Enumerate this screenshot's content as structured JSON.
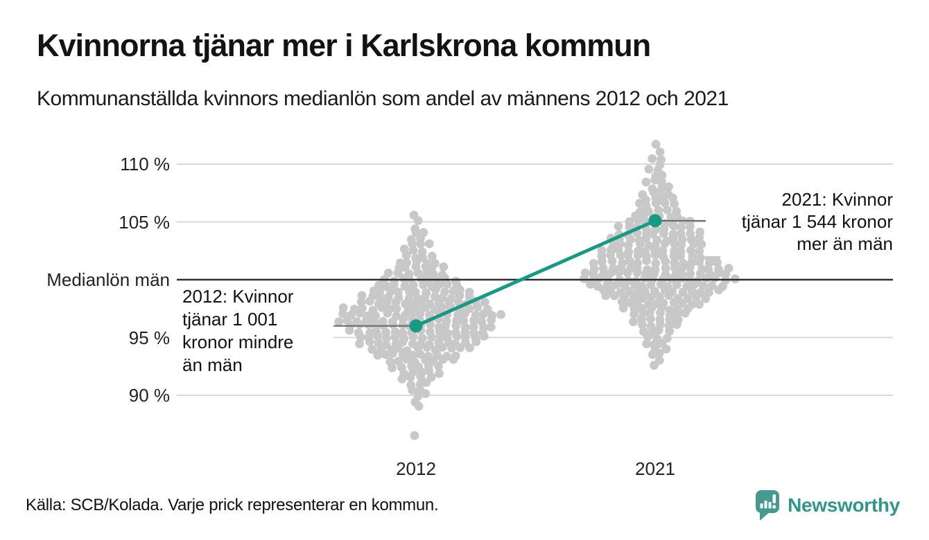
{
  "header": {
    "title": "Kvinnorna tjänar mer i Karlskrona kommun",
    "subtitle": "Kommunanställda kvinnors medianlön som andel av männens 2012 och 2021"
  },
  "footer": {
    "source": "Källa: SCB/Kolada. Varje prick representerar en kommun.",
    "brand": "Newsworthy"
  },
  "colors": {
    "accent": "#179a84",
    "dot": "#c8c8c8",
    "grid": "#d8d8d8",
    "axis_emphasis": "#2e2e2e",
    "pointer": "#666666",
    "logo_icon": "#45998f",
    "logo_text": "#2f968c"
  },
  "chart_data": {
    "type": "scatter",
    "variant": "beeswarm",
    "unit": "% of men's median salary",
    "categories": [
      "2012",
      "2021"
    ],
    "yticks": [
      {
        "label": "110 %",
        "value": 110,
        "emphasis": false
      },
      {
        "label": "105 %",
        "value": 105,
        "emphasis": false
      },
      {
        "label": "Medianlön män",
        "value": 100,
        "emphasis": true
      },
      {
        "label": "95 %",
        "value": 95,
        "emphasis": false
      },
      {
        "label": "90 %",
        "value": 90,
        "emphasis": false
      }
    ],
    "ylim": [
      86,
      112.5
    ],
    "grid": true,
    "highlight": {
      "municipality": "Karlskrona kommun",
      "points": [
        {
          "category": "2012",
          "value": 96.0
        },
        {
          "category": "2021",
          "value": 105.1
        }
      ]
    },
    "annotations": [
      {
        "category": "2012",
        "value": 96.0,
        "text": "2012: Kvinnor\ntjänar 1 001\nkronor mindre\nän män",
        "align": "left"
      },
      {
        "category": "2021",
        "value": 105.1,
        "text": "2021: Kvinnor\ntjänar 1 544 kronor\nmer än män",
        "align": "right"
      }
    ],
    "series": [
      {
        "category": "2012",
        "bins": [
          [
            105.5,
            1
          ],
          [
            105,
            1
          ],
          [
            104.5,
            1
          ],
          [
            104,
            2
          ],
          [
            103.5,
            2
          ],
          [
            103,
            3
          ],
          [
            102.5,
            3
          ],
          [
            102,
            4
          ],
          [
            101.5,
            5
          ],
          [
            101,
            6
          ],
          [
            100.5,
            7
          ],
          [
            100,
            9
          ],
          [
            99.5,
            10
          ],
          [
            99,
            12
          ],
          [
            98.5,
            13
          ],
          [
            98,
            15
          ],
          [
            97.5,
            17
          ],
          [
            97,
            19
          ],
          [
            96.5,
            18
          ],
          [
            96,
            17
          ],
          [
            95.5,
            16
          ],
          [
            95,
            15
          ],
          [
            94.5,
            14
          ],
          [
            94,
            12
          ],
          [
            93.5,
            10
          ],
          [
            93,
            8
          ],
          [
            92.5,
            6
          ],
          [
            92,
            5
          ],
          [
            91.5,
            4
          ],
          [
            91,
            3
          ],
          [
            90.5,
            2
          ],
          [
            90,
            2
          ],
          [
            89.5,
            1
          ],
          [
            89,
            1
          ],
          [
            86.4,
            1
          ]
        ]
      },
      {
        "category": "2021",
        "bins": [
          [
            111.7,
            1
          ],
          [
            111,
            1
          ],
          [
            110.5,
            2
          ],
          [
            110,
            1
          ],
          [
            109.5,
            2
          ],
          [
            109,
            2
          ],
          [
            108.5,
            3
          ],
          [
            108,
            3
          ],
          [
            107.5,
            4
          ],
          [
            107,
            4
          ],
          [
            106.5,
            5
          ],
          [
            106,
            5
          ],
          [
            105.5,
            6
          ],
          [
            105,
            8
          ],
          [
            104.5,
            9
          ],
          [
            104,
            10
          ],
          [
            103.5,
            11
          ],
          [
            103,
            12
          ],
          [
            102.5,
            13
          ],
          [
            102,
            14
          ],
          [
            101.5,
            15
          ],
          [
            101,
            16
          ],
          [
            100.5,
            17
          ],
          [
            100,
            18
          ],
          [
            99.5,
            16
          ],
          [
            99,
            14
          ],
          [
            98.5,
            12
          ],
          [
            98,
            10
          ],
          [
            97.5,
            8
          ],
          [
            97,
            7
          ],
          [
            96.5,
            6
          ],
          [
            96,
            5
          ],
          [
            95.5,
            4
          ],
          [
            95,
            3
          ],
          [
            94.5,
            3
          ],
          [
            94,
            2
          ],
          [
            93.5,
            2
          ],
          [
            93,
            1
          ],
          [
            92.5,
            1
          ]
        ]
      }
    ]
  }
}
